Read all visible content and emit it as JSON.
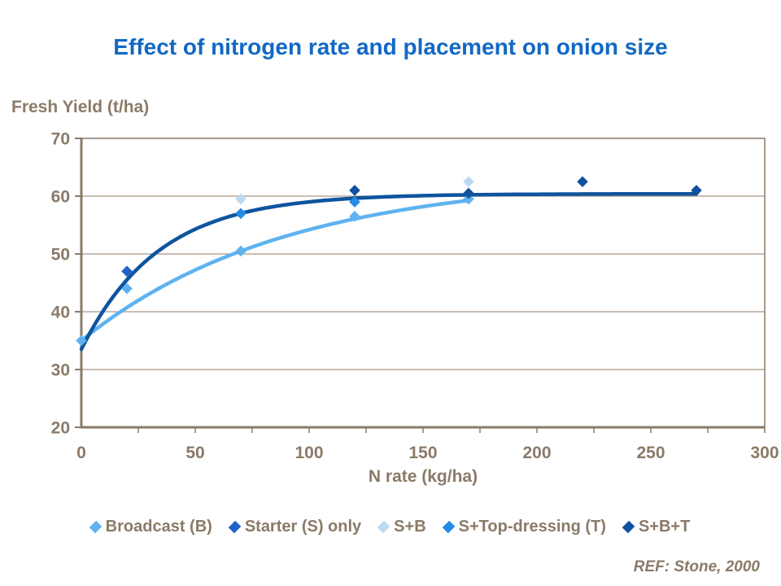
{
  "title": "Effect of nitrogen rate and placement on onion size",
  "ref_note": "REF: Stone, 2000",
  "colors": {
    "title_blue": "#1268C4",
    "text_brown": "#8A7A68",
    "gridline_brown": "#A89786",
    "axis_brown": "#8A7A68"
  },
  "chart_data": {
    "type": "scatter",
    "title": "Effect of nitrogen rate and placement on onion size",
    "xlabel": "N rate (kg/ha)",
    "ylabel": "Fresh Yield (t/ha)",
    "xlim": [
      0,
      300
    ],
    "ylim": [
      20,
      70
    ],
    "x_ticks": [
      0,
      50,
      100,
      150,
      200,
      250,
      300
    ],
    "y_ticks": [
      20,
      30,
      40,
      50,
      60,
      70
    ],
    "x_minor_tick_step": 25,
    "grid": "horizontal",
    "legend_position": "bottom",
    "series": [
      {
        "name": "Broadcast (B)",
        "color": "#5FB2F0",
        "points": [
          [
            0,
            35
          ],
          [
            20,
            44
          ],
          [
            70,
            50.5
          ],
          [
            120,
            56.5
          ],
          [
            170,
            59.5
          ]
        ]
      },
      {
        "name": "Starter (S) only",
        "color": "#1E63C8",
        "points": [
          [
            20,
            47
          ]
        ]
      },
      {
        "name": "S+B",
        "color": "#BCD9F4",
        "points": [
          [
            70,
            59.5
          ],
          [
            170,
            62.5
          ]
        ]
      },
      {
        "name": "S+Top-dressing (T)",
        "color": "#2689E8",
        "points": [
          [
            70,
            57
          ],
          [
            120,
            59
          ]
        ]
      },
      {
        "name": "S+B+T",
        "color": "#12519E",
        "points": [
          [
            120,
            61
          ],
          [
            170,
            60.5
          ],
          [
            220,
            62.5
          ],
          [
            270,
            61
          ]
        ]
      }
    ],
    "trend_curves": [
      {
        "name": "broadcast-fit",
        "color": "#5FB2F0",
        "y_start": 35.0,
        "y_asymptote": 63.5,
        "rate": 0.0112,
        "x_end": 170,
        "stroke_width": 4.5
      },
      {
        "name": "s-b-t-fit",
        "color": "#0E549E",
        "y_start": 33.5,
        "y_asymptote": 60.4,
        "rate": 0.0296,
        "x_end": 270,
        "stroke_width": 4.5
      }
    ]
  }
}
